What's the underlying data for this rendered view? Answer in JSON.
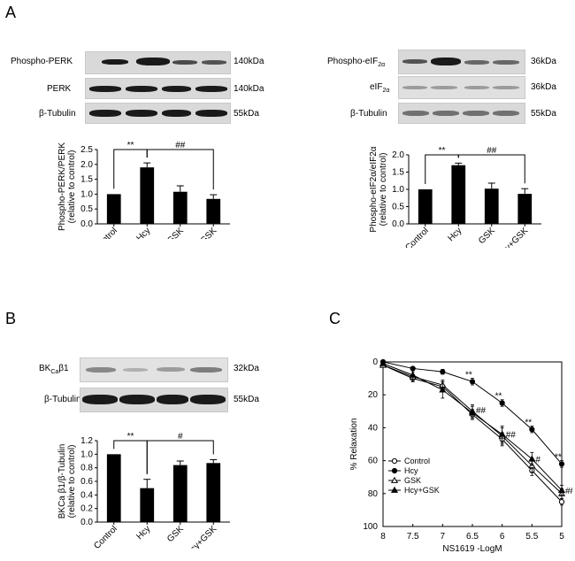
{
  "panels": {
    "A": {
      "letter": "A",
      "left": {
        "blots": [
          {
            "label": "Phospho-PERK",
            "kda": "140kDa"
          },
          {
            "label": "PERK",
            "kda": "140kDa"
          },
          {
            "label": "β-Tubulin",
            "kda": "55kDa"
          }
        ]
      },
      "right": {
        "blots": [
          {
            "label": "Phospho-eIF",
            "sub": "2α",
            "kda": "36kDa"
          },
          {
            "label": "eIF",
            "sub": "2α",
            "kda": "36kDa"
          },
          {
            "label": "β-Tubulin",
            "kda": "55kDa"
          }
        ]
      }
    },
    "B": {
      "letter": "B",
      "blots": [
        {
          "label": "BK",
          "sub": "Ca",
          "label2": "β1",
          "kda": "32kDa"
        },
        {
          "label": "β-Tubulin",
          "kda": "55kDa"
        }
      ]
    },
    "C": {
      "letter": "C"
    }
  },
  "chart_data": [
    {
      "id": "A-left",
      "type": "bar",
      "categories": [
        "Control",
        "Hcy",
        "GSK",
        "Hcy+GSK"
      ],
      "values": [
        1.0,
        1.9,
        1.08,
        0.84
      ],
      "errors": [
        0.0,
        0.15,
        0.2,
        0.14
      ],
      "ylabel": "Phospho-PERK/PERK\n(relative to control)",
      "ylim": [
        0,
        2.5
      ],
      "yticks": [
        "0.0",
        "0.5",
        "1.0",
        "1.5",
        "2.0",
        "2.5"
      ],
      "annotations": [
        {
          "text": "**",
          "from": 0,
          "to": 1
        },
        {
          "text": "##",
          "from": 1,
          "to": 3
        }
      ]
    },
    {
      "id": "A-right",
      "type": "bar",
      "categories": [
        "Control",
        "Hcy",
        "GSK",
        "Hcy+GSK"
      ],
      "values": [
        1.0,
        1.7,
        1.02,
        0.87
      ],
      "errors": [
        0.0,
        0.06,
        0.16,
        0.15
      ],
      "ylabel": "Phospho-eIF2α/eIF2α\n(relative to control)",
      "ylim": [
        0,
        2.0
      ],
      "yticks": [
        "0.0",
        "0.5",
        "1.0",
        "1.5",
        "2.0"
      ],
      "annotations": [
        {
          "text": "**",
          "from": 0,
          "to": 1
        },
        {
          "text": "##",
          "from": 1,
          "to": 3
        }
      ]
    },
    {
      "id": "B",
      "type": "bar",
      "categories": [
        "Control",
        "Hcy",
        "GSK",
        "Hcy+GSK"
      ],
      "values": [
        1.0,
        0.5,
        0.84,
        0.87
      ],
      "errors": [
        0.0,
        0.13,
        0.06,
        0.05
      ],
      "ylabel": "BKCa β1/β-Tubulin\n(relative to control)",
      "ylim": [
        0,
        1.2
      ],
      "yticks": [
        "0.0",
        "0.2",
        "0.4",
        "0.6",
        "0.8",
        "1.0",
        "1.2"
      ],
      "annotations": [
        {
          "text": "**",
          "from": 0,
          "to": 1
        },
        {
          "text": "#",
          "from": 1,
          "to": 3
        }
      ]
    },
    {
      "id": "C",
      "type": "line",
      "xlabel": "NS1619 -LogM",
      "ylabel": "% Relaxation",
      "x": [
        8,
        7.5,
        7,
        6.5,
        6,
        5.5,
        5
      ],
      "xticks": [
        "8",
        "7.5",
        "7",
        "6.5",
        "6",
        "5.5",
        "5"
      ],
      "yticks": [
        "0",
        "20",
        "40",
        "60",
        "80",
        "100"
      ],
      "ylim": [
        0,
        100
      ],
      "y_inverted": true,
      "legend": "bottom-left",
      "series": [
        {
          "name": "Control",
          "marker": "open-circle",
          "values": [
            2,
            10,
            15,
            32,
            47,
            66,
            85
          ],
          "errors": [
            1,
            2,
            3,
            3,
            4,
            3,
            2
          ]
        },
        {
          "name": "Hcy",
          "marker": "filled-circle",
          "values": [
            0,
            4,
            6,
            12,
            25,
            41,
            62
          ],
          "errors": [
            0.5,
            1,
            1.5,
            2,
            2,
            2,
            2
          ]
        },
        {
          "name": "GSK",
          "marker": "open-triangle",
          "values": [
            2,
            9,
            14,
            30,
            45,
            63,
            80
          ],
          "errors": [
            1,
            3,
            3,
            4,
            5,
            4,
            3
          ]
        },
        {
          "name": "Hcy+GSK",
          "marker": "filled-triangle",
          "values": [
            1,
            8,
            17,
            31,
            44,
            59,
            78
          ],
          "errors": [
            1,
            3,
            5,
            4,
            5,
            4,
            3
          ]
        }
      ],
      "annotations": [
        {
          "x": 6.5,
          "y": 12,
          "text": "**"
        },
        {
          "x": 6,
          "y": 25,
          "text": "**"
        },
        {
          "x": 5.5,
          "y": 41,
          "text": "**"
        },
        {
          "x": 5,
          "y": 62,
          "text": "**"
        },
        {
          "x": 6.5,
          "y": 30,
          "text": "##"
        },
        {
          "x": 6,
          "y": 45,
          "text": "##"
        },
        {
          "x": 5.5,
          "y": 60,
          "text": "#"
        },
        {
          "x": 5,
          "y": 79,
          "text": "##"
        }
      ]
    }
  ]
}
